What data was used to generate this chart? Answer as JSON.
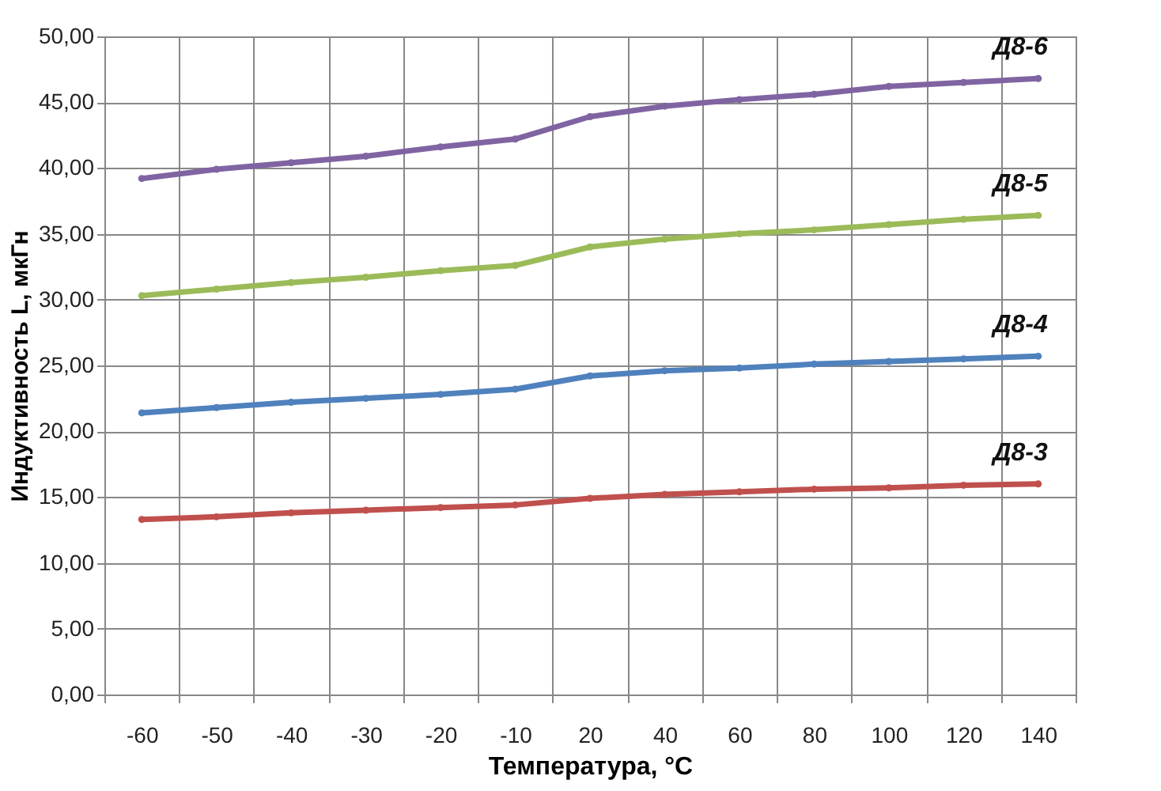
{
  "chart_data": {
    "type": "line",
    "xlabel": "Температура,  °C",
    "ylabel": "Индуктивность L, мкГн",
    "categories": [
      "-60",
      "-50",
      "-40",
      "-30",
      "-20",
      "-10",
      "20",
      "40",
      "60",
      "80",
      "100",
      "120",
      "140"
    ],
    "series": [
      {
        "name": "Д8-6",
        "color": "#8064a2",
        "values": [
          39.2,
          39.9,
          40.4,
          40.9,
          41.6,
          42.2,
          43.9,
          44.7,
          45.2,
          45.6,
          46.2,
          46.5,
          46.8
        ]
      },
      {
        "name": "Д8-5",
        "color": "#9bbb59",
        "values": [
          30.3,
          30.8,
          31.3,
          31.7,
          32.2,
          32.6,
          34.0,
          34.6,
          35.0,
          35.3,
          35.7,
          36.1,
          36.4
        ]
      },
      {
        "name": "Д8-4",
        "color": "#4f81bd",
        "values": [
          21.4,
          21.8,
          22.2,
          22.5,
          22.8,
          23.2,
          24.2,
          24.6,
          24.8,
          25.1,
          25.3,
          25.5,
          25.7
        ]
      },
      {
        "name": "Д8-3",
        "color": "#c0504d",
        "values": [
          13.3,
          13.5,
          13.8,
          14.0,
          14.2,
          14.4,
          14.9,
          15.2,
          15.4,
          15.6,
          15.7,
          15.9,
          16.0
        ]
      }
    ],
    "ylim": [
      0,
      50
    ],
    "yticks": [
      {
        "value": 0,
        "label": "0,00"
      },
      {
        "value": 5,
        "label": "5,00"
      },
      {
        "value": 10,
        "label": "10,00"
      },
      {
        "value": 15,
        "label": "15,00"
      },
      {
        "value": 20,
        "label": "20,00"
      },
      {
        "value": 25,
        "label": "25,00"
      },
      {
        "value": 30,
        "label": "30,00"
      },
      {
        "value": 35,
        "label": "35,00"
      },
      {
        "value": 40,
        "label": "40,00"
      },
      {
        "value": 45,
        "label": "45,00"
      },
      {
        "value": 50,
        "label": "50,00"
      }
    ],
    "grid": true,
    "legend": false,
    "marker": "circle",
    "line_style": "solid"
  }
}
